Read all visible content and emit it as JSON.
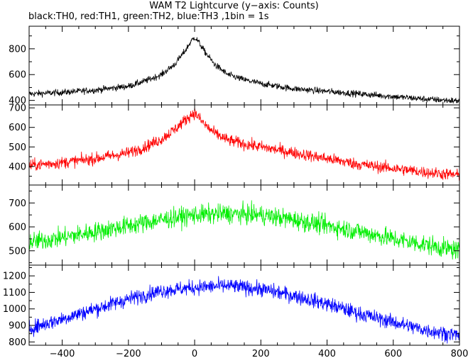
{
  "title": "WAM T2 Lightcurve (y−axis: Counts)",
  "subtitle": "black:TH0, red:TH1, green:TH2, blue:TH3 ,1bin = 1s",
  "chart_data": {
    "type": "line",
    "x_range": [
      -500,
      800
    ],
    "x_ticks": [
      -400,
      -200,
      0,
      200,
      400,
      600,
      800
    ],
    "grid": false,
    "series": [
      {
        "color": "#000000",
        "ylim": [
          365,
          975
        ],
        "y_ticks": [
          400,
          600,
          800
        ],
        "x": [
          -500,
          -400,
          -300,
          -200,
          -150,
          -100,
          -60,
          -30,
          -10,
          0,
          10,
          30,
          60,
          100,
          150,
          200,
          300,
          400,
          500,
          600,
          700,
          800
        ],
        "values": [
          450,
          462,
          480,
          510,
          550,
          600,
          680,
          780,
          860,
          890,
          860,
          780,
          680,
          600,
          560,
          530,
          490,
          470,
          450,
          430,
          410,
          395
        ],
        "noise": 25
      },
      {
        "color": "#ff0000",
        "ylim": [
          305,
          715
        ],
        "y_ticks": [
          400,
          500,
          600,
          700
        ],
        "x": [
          -500,
          -400,
          -300,
          -200,
          -150,
          -100,
          -60,
          -30,
          -10,
          0,
          10,
          30,
          60,
          100,
          150,
          200,
          300,
          400,
          500,
          600,
          700,
          800
        ],
        "values": [
          405,
          420,
          440,
          470,
          500,
          540,
          590,
          635,
          665,
          675,
          655,
          615,
          570,
          535,
          515,
          500,
          470,
          440,
          410,
          390,
          370,
          355
        ],
        "noise": 30
      },
      {
        "color": "#00ee00",
        "ylim": [
          440,
          775
        ],
        "y_ticks": [
          500,
          600,
          700
        ],
        "x": [
          -500,
          -400,
          -300,
          -200,
          -100,
          0,
          100,
          200,
          300,
          400,
          500,
          600,
          700,
          800
        ],
        "values": [
          535,
          555,
          580,
          605,
          630,
          650,
          655,
          650,
          630,
          605,
          580,
          550,
          525,
          500
        ],
        "noise": 40
      },
      {
        "color": "#0000ff",
        "ylim": [
          780,
          1265
        ],
        "y_ticks": [
          800,
          900,
          1000,
          1100,
          1200
        ],
        "x": [
          -500,
          -400,
          -300,
          -200,
          -100,
          0,
          100,
          200,
          300,
          400,
          500,
          600,
          700,
          800
        ],
        "values": [
          880,
          940,
          1000,
          1060,
          1110,
          1130,
          1140,
          1120,
          1080,
          1030,
          970,
          920,
          870,
          840
        ],
        "noise": 45
      }
    ]
  }
}
